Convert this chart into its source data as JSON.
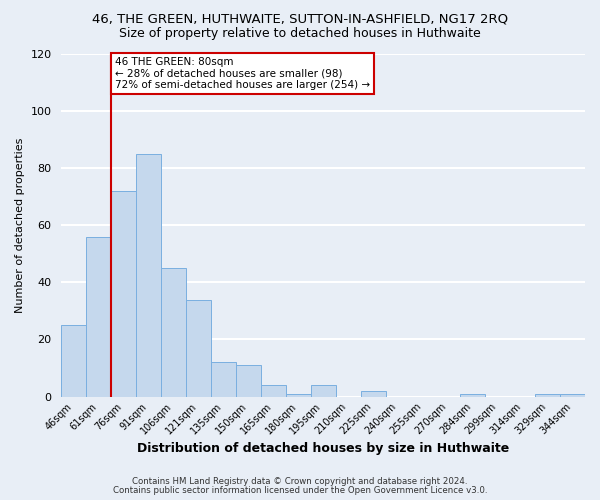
{
  "title": "46, THE GREEN, HUTHWAITE, SUTTON-IN-ASHFIELD, NG17 2RQ",
  "subtitle": "Size of property relative to detached houses in Huthwaite",
  "xlabel": "Distribution of detached houses by size in Huthwaite",
  "ylabel": "Number of detached properties",
  "bin_labels": [
    "46sqm",
    "61sqm",
    "76sqm",
    "91sqm",
    "106sqm",
    "121sqm",
    "135sqm",
    "150sqm",
    "165sqm",
    "180sqm",
    "195sqm",
    "210sqm",
    "225sqm",
    "240sqm",
    "255sqm",
    "270sqm",
    "284sqm",
    "299sqm",
    "314sqm",
    "329sqm",
    "344sqm"
  ],
  "bar_heights": [
    25,
    56,
    72,
    85,
    45,
    34,
    12,
    11,
    4,
    1,
    4,
    0,
    2,
    0,
    0,
    0,
    1,
    0,
    0,
    1,
    1
  ],
  "bar_color": "#c5d8ed",
  "bar_edge_color": "#7aafe0",
  "ylim": [
    0,
    120
  ],
  "yticks": [
    0,
    20,
    40,
    60,
    80,
    100,
    120
  ],
  "vline_x": 2,
  "vline_color": "#cc0000",
  "annotation_text": "46 THE GREEN: 80sqm\n← 28% of detached houses are smaller (98)\n72% of semi-detached houses are larger (254) →",
  "annotation_box_color": "#ffffff",
  "annotation_box_edge": "#cc0000",
  "footer_line1": "Contains HM Land Registry data © Crown copyright and database right 2024.",
  "footer_line2": "Contains public sector information licensed under the Open Government Licence v3.0.",
  "background_color": "#e8eef6",
  "plot_background": "#e8eef6",
  "grid_color": "#ffffff",
  "title_fontsize": 9.5,
  "subtitle_fontsize": 9
}
